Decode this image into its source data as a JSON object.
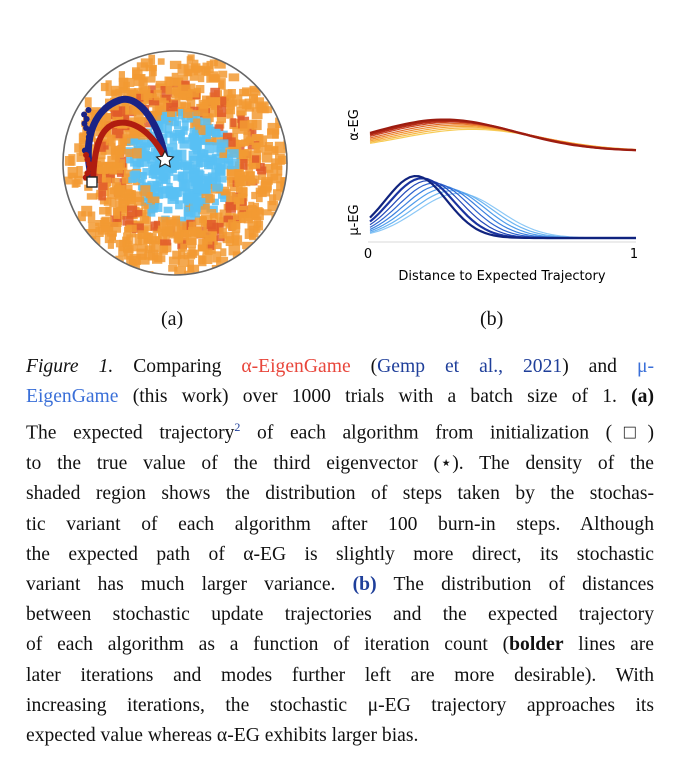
{
  "figure": {
    "panel_a": {
      "label": "(a)",
      "init_marker": "□",
      "target_marker": "★",
      "colors": {
        "light_blue": "#58bff3",
        "orange": "#f29a33",
        "dark_orange": "#e05a2a",
        "blue_traj": "#1a2385",
        "red_traj": "#b01c10"
      }
    },
    "panel_b": {
      "label": "(b)",
      "ylabel_top": "α-EG",
      "ylabel_bottom": "μ-EG",
      "xlabel": "Distance to Expected Trajectory",
      "xtick_min": "0",
      "xtick_max": "1"
    }
  },
  "caption": {
    "line1": {
      "prefix": "Figure 1.",
      "t1": " Comparing ",
      "alpha_name": "α-EigenGame",
      "t2": " (",
      "cite": "Gemp et al., 2021",
      "t3": ") and ",
      "mu_start": "μ-"
    },
    "line2": {
      "mu_end": "EigenGame",
      "t1": " (this work) over 1000 trials with a batch size of 1. ",
      "bold": "(a)"
    },
    "line3": {
      "t1": "The expected trajectory",
      "sup": "2",
      "t2": " of each algorithm from initialization (□)"
    },
    "line4": "to the true value of the third eigenvector (⋆). The density of the",
    "line5": "shaded region shows the distribution of steps taken by the stochas-",
    "line6": "tic variant of each algorithm after 100 burn-in steps. Although",
    "line7": "the expected path of α-EG is slightly more direct, its stochastic",
    "line8": {
      "t1": "variant has much larger variance. ",
      "bold": "(b)",
      "t2": " The distribution of distances"
    },
    "line9": "between stochastic update trajectories and the expected trajectory",
    "line10": {
      "t1": "of each algorithm as a function of iteration count (",
      "bold": "bolder",
      "t2": " lines are"
    },
    "line11": "later iterations and modes further left are more desirable). With",
    "line12": "increasing iterations, the stochastic μ-EG trajectory approaches its",
    "line13": "expected value whereas α-EG exhibits larger bias."
  }
}
